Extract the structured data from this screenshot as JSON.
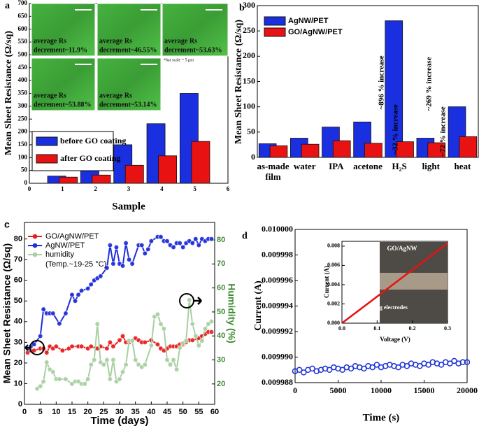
{
  "chart_data": [
    {
      "type": "bar",
      "label": "a",
      "x_label": "Sample",
      "y_label": "Mean Sheet Resistance (Ω/sq)",
      "x": [
        1,
        2,
        3,
        4,
        5
      ],
      "xlim": [
        0,
        6
      ],
      "xticks": [
        0,
        1,
        2,
        3,
        4,
        5,
        6
      ],
      "ylim": [
        0,
        700
      ],
      "yticks": [
        0,
        50,
        100,
        150,
        200,
        250,
        300,
        350,
        400,
        450,
        500,
        550,
        600,
        650,
        700
      ],
      "series": [
        {
          "name": "before GO coating",
          "color": "#1a2fe0",
          "values": [
            28,
            60,
            150,
            232,
            350
          ]
        },
        {
          "name": "after GO coating",
          "color": "#e81212",
          "values": [
            24,
            32,
            70,
            107,
            163
          ]
        }
      ],
      "legend": "lower left",
      "insets": [
        [
          "average Rs",
          "decrement~11.9%"
        ],
        [
          "average Rs",
          "decrement~46.55%"
        ],
        [
          "average Rs",
          "decrement~53.63%"
        ],
        [
          "average Rs",
          "decrement~53.88%"
        ],
        [
          "average Rs",
          "decrement~53.14%"
        ]
      ],
      "scale_note": "*bar scale = 5 μm"
    },
    {
      "type": "bar",
      "label": "b",
      "y_label": "Mean Sheet Resistance (Ω/sq)",
      "categories": [
        "as-made film",
        "water",
        "IPA",
        "acetone",
        "H₂S",
        "light",
        "heat"
      ],
      "ylim": [
        0,
        300
      ],
      "yticks": [
        0,
        50,
        100,
        150,
        200,
        250,
        300
      ],
      "series": [
        {
          "name": "AgNW/PET",
          "color": "#1a2fe0",
          "values": [
            27,
            38,
            60,
            70,
            270,
            38,
            100
          ]
        },
        {
          "name": "GO/AgNW/PET",
          "color": "#e81212",
          "values": [
            23,
            26,
            33,
            28,
            31,
            29,
            41
          ]
        }
      ],
      "legend": "upper left",
      "annotations": [
        "~896 % increase",
        "~32 % increase",
        "~269 % increase",
        "~72 % increase"
      ]
    },
    {
      "type": "line",
      "label": "c",
      "x_label": "Time (days)",
      "y_label": "Mean Sheet Resistance (Ω/sq)",
      "y2_label": "Humidity (%)",
      "xlim": [
        0,
        60
      ],
      "xticks": [
        0,
        5,
        10,
        15,
        20,
        25,
        30,
        35,
        40,
        45,
        50,
        55,
        60
      ],
      "ylim": [
        0,
        88
      ],
      "yticks": [
        0,
        10,
        20,
        30,
        40,
        50,
        60,
        70,
        80
      ],
      "y2lim": [
        11.5,
        87.3
      ],
      "y2ticks": [
        20,
        30,
        40,
        50,
        60,
        70,
        80
      ],
      "legend": "upper left",
      "note": "(Temp.~19-25 °C)",
      "series": [
        {
          "name": "GO/AgNW/PET",
          "color": "#e52020",
          "x": [
            1,
            2,
            3,
            5,
            6,
            7,
            8,
            9,
            10,
            12,
            14,
            15,
            17,
            18,
            20,
            21,
            23,
            24,
            26,
            27,
            28,
            30,
            31,
            32,
            33,
            35,
            36,
            37,
            38,
            40,
            42,
            43,
            44,
            45,
            46,
            47,
            48,
            49,
            50,
            51,
            52,
            53,
            55,
            56,
            57,
            58,
            59
          ],
          "values": [
            25,
            26,
            26,
            27,
            27,
            25,
            28,
            27,
            28,
            26,
            27,
            28,
            28,
            28,
            27,
            28,
            27,
            28,
            27,
            30,
            28,
            31,
            33,
            30,
            30,
            32,
            31,
            30,
            30,
            31,
            29,
            27,
            26,
            27,
            28,
            28,
            28,
            29,
            29,
            30,
            31,
            31,
            32,
            33,
            34,
            35,
            35
          ]
        },
        {
          "name": "AgNW/PET",
          "color": "#1f2fd8",
          "x": [
            1,
            2,
            3,
            5,
            6,
            7,
            8,
            9,
            11,
            13,
            15,
            16,
            17,
            18,
            20,
            21,
            22,
            23,
            24,
            26,
            27,
            28,
            29,
            30,
            31,
            32,
            33,
            34,
            36,
            37,
            38,
            39,
            40,
            42,
            43,
            44,
            45,
            46,
            47,
            48,
            49,
            50,
            51,
            52,
            53,
            54,
            55,
            56,
            57,
            58,
            59
          ],
          "values": [
            27,
            28,
            29,
            33,
            46,
            44,
            44,
            44,
            39,
            44,
            53,
            50,
            53,
            55,
            56,
            58,
            60,
            61,
            62,
            66,
            77,
            68,
            76,
            68,
            67,
            78,
            70,
            68,
            77,
            77,
            73,
            75,
            79,
            81,
            81,
            79,
            79,
            77,
            76,
            78,
            78,
            76,
            78,
            79,
            78,
            80,
            77,
            80,
            79,
            80,
            80
          ]
        },
        {
          "name": "humidity",
          "color": "#a9cfa2",
          "axis": "y2",
          "x": [
            4,
            5,
            6,
            7,
            8,
            9,
            10,
            11,
            13,
            15,
            16,
            17,
            18,
            19,
            20,
            21,
            22,
            23,
            24,
            25,
            26,
            27,
            28,
            29,
            30,
            31,
            32,
            33,
            34,
            35,
            36,
            37,
            38,
            40,
            41,
            42,
            43,
            44,
            45,
            46,
            47,
            48,
            49,
            50,
            51,
            52,
            53,
            54,
            55,
            56,
            57,
            58,
            59
          ],
          "values": [
            18,
            19,
            21,
            29,
            26,
            25,
            22,
            22,
            22,
            20,
            21,
            21,
            20,
            20,
            22,
            28,
            30,
            45,
            29,
            28,
            30,
            22,
            30,
            21,
            22,
            25,
            28,
            38,
            38,
            30,
            28,
            27,
            28,
            36,
            48,
            49,
            45,
            43,
            30,
            28,
            30,
            26,
            35,
            37,
            38,
            55,
            45,
            40,
            36,
            38,
            43,
            45,
            46
          ]
        }
      ]
    },
    {
      "type": "scatter",
      "label": "d",
      "x_label": "Time (s)",
      "y_label": "Current (A)",
      "color": "#1a2fd6",
      "xlim": [
        0,
        20000
      ],
      "xticks": [
        0,
        5000,
        10000,
        15000,
        20000
      ],
      "ylim": [
        0.009988,
        0.01
      ],
      "yticks": [
        0.009988,
        {
          "value": 0.00999,
          "label": "0.009990"
        },
        0.009992,
        0.009994,
        0.009996,
        0.009998,
        {
          "value": 0.01,
          "label": "0.010000"
        }
      ],
      "x": [
        0,
        500,
        1000,
        1500,
        2000,
        2500,
        3000,
        3500,
        4000,
        4500,
        5000,
        5500,
        6000,
        6500,
        7000,
        7500,
        8000,
        8500,
        9000,
        9500,
        10000,
        10500,
        11000,
        11500,
        12000,
        12500,
        13000,
        13500,
        14000,
        14500,
        15000,
        15500,
        16000,
        16500,
        17000,
        17500,
        18000,
        18500,
        19000,
        19500,
        20000
      ],
      "values": [
        0.0099889,
        0.009989,
        0.0099888,
        0.009989,
        0.0099891,
        0.0099889,
        0.009989,
        0.0099891,
        0.009989,
        0.0099892,
        0.0099891,
        0.009989,
        0.0099892,
        0.0099891,
        0.0099893,
        0.0099892,
        0.0099891,
        0.0099893,
        0.0099892,
        0.0099894,
        0.0099892,
        0.0099893,
        0.0099894,
        0.0099893,
        0.0099892,
        0.0099894,
        0.0099893,
        0.0099895,
        0.0099894,
        0.0099893,
        0.0099895,
        0.0099894,
        0.0099896,
        0.0099895,
        0.0099894,
        0.0099896,
        0.0099895,
        0.0099897,
        0.0099895,
        0.0099896,
        0.0099896
      ]
    },
    {
      "type": "line",
      "x_label": "Voltage (V)",
      "y_label": "Current (A)",
      "color": "#e81212",
      "xlim": [
        0,
        0.3
      ],
      "xticks": [
        {
          "value": 0,
          "label": "0.0"
        },
        0.1,
        0.2,
        0.3
      ],
      "ylim": [
        0,
        0.0085
      ],
      "yticks": [
        {
          "value": 0,
          "label": "0.000"
        },
        0.002,
        0.004,
        0.006,
        0.008
      ],
      "x": [
        0,
        0.3
      ],
      "values": [
        0,
        0.0083
      ],
      "annotations": [
        "GO/AgNW",
        "Ag electrodes"
      ]
    }
  ]
}
